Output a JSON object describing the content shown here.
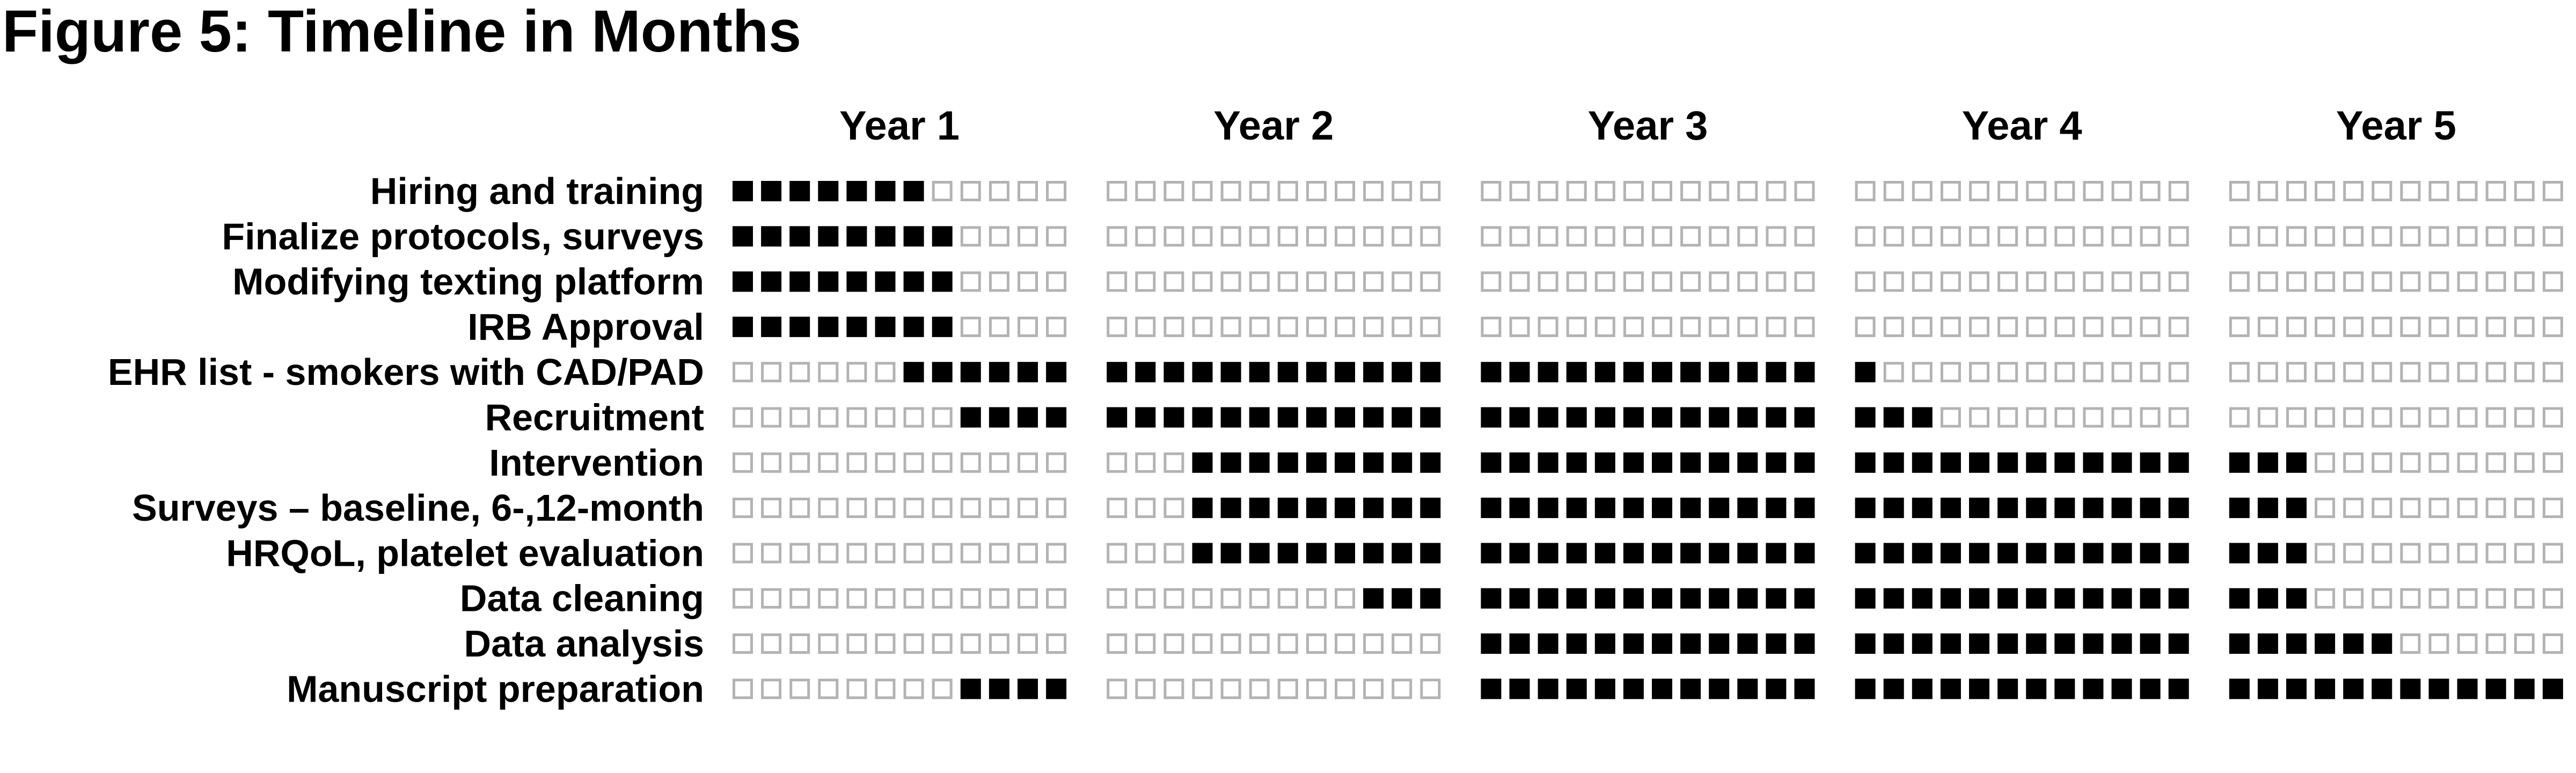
{
  "title": "Figure 5: Timeline in Months",
  "chart_data": {
    "type": "table",
    "title": "Figure 5: Timeline in Months",
    "years": [
      "Year 1",
      "Year 2",
      "Year 3",
      "Year 4",
      "Year 5"
    ],
    "months_per_year": 12,
    "filled_color": "#000000",
    "empty_color": "#b3b3b3",
    "tasks": [
      {
        "label": "Hiring and training",
        "active_months": [
          [
            1,
            7
          ]
        ]
      },
      {
        "label": "Finalize protocols, surveys",
        "active_months": [
          [
            1,
            8
          ]
        ]
      },
      {
        "label": "Modifying texting platform",
        "active_months": [
          [
            1,
            8
          ]
        ]
      },
      {
        "label": "IRB Approval",
        "active_months": [
          [
            1,
            8
          ]
        ]
      },
      {
        "label": "EHR list - smokers with CAD/PAD",
        "active_months": [
          [
            7,
            37
          ]
        ]
      },
      {
        "label": "Recruitment",
        "active_months": [
          [
            9,
            39
          ]
        ]
      },
      {
        "label": "Intervention",
        "active_months": [
          [
            16,
            51
          ]
        ]
      },
      {
        "label": "Surveys – baseline, 6-,12-month",
        "active_months": [
          [
            16,
            51
          ]
        ]
      },
      {
        "label": "HRQoL, platelet evaluation",
        "active_months": [
          [
            16,
            51
          ]
        ]
      },
      {
        "label": "Data cleaning",
        "active_months": [
          [
            22,
            51
          ]
        ]
      },
      {
        "label": "Data analysis",
        "active_months": [
          [
            25,
            54
          ]
        ]
      },
      {
        "label": "Manuscript preparation",
        "active_months": [
          [
            9,
            12
          ],
          [
            25,
            60
          ]
        ]
      }
    ]
  }
}
